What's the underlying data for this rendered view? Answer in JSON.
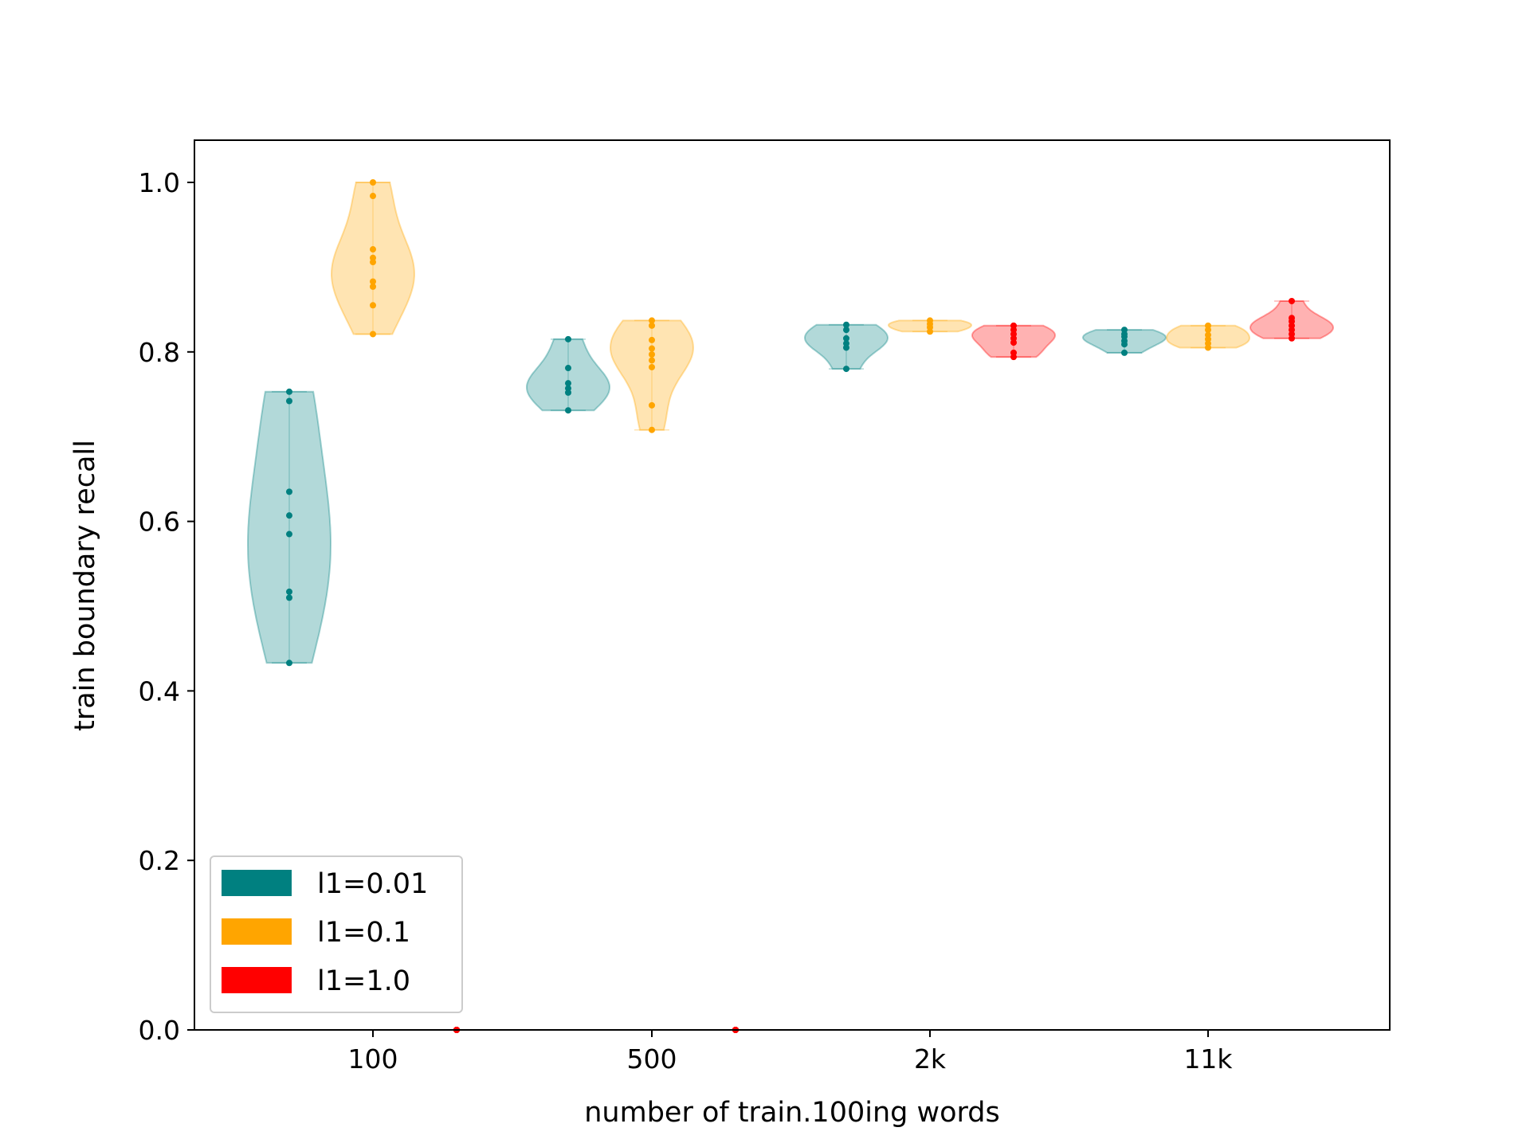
{
  "chart_data": {
    "type": "violin",
    "title": "",
    "xlabel": "number of train.100ing words",
    "ylabel": "train boundary recall",
    "categories": [
      "100",
      "500",
      "2k",
      "11k"
    ],
    "ylim": [
      0,
      1.05
    ],
    "yticks": [
      "0.0",
      "0.2",
      "0.4",
      "0.6",
      "0.8",
      "1.0"
    ],
    "grid": false,
    "legend_position": "lower-left",
    "series": [
      {
        "name": "l1=0.01",
        "color": "#008080",
        "groups": [
          {
            "category": "100",
            "points": [
              0.433,
              0.51,
              0.517,
              0.585,
              0.607,
              0.635,
              0.742,
              0.753
            ]
          },
          {
            "category": "500",
            "points": [
              0.731,
              0.752,
              0.757,
              0.763,
              0.781,
              0.815
            ]
          },
          {
            "category": "2k",
            "points": [
              0.78,
              0.805,
              0.81,
              0.816,
              0.826,
              0.832
            ]
          },
          {
            "category": "11k",
            "points": [
              0.799,
              0.809,
              0.813,
              0.818,
              0.821,
              0.826
            ]
          }
        ]
      },
      {
        "name": "l1=0.1",
        "color": "#FFA500",
        "groups": [
          {
            "category": "100",
            "points": [
              0.821,
              0.855,
              0.877,
              0.883,
              0.906,
              0.911,
              0.921,
              0.984,
              1.0
            ]
          },
          {
            "category": "500",
            "points": [
              0.708,
              0.737,
              0.782,
              0.79,
              0.797,
              0.804,
              0.814,
              0.831,
              0.837
            ]
          },
          {
            "category": "2k",
            "points": [
              0.824,
              0.829,
              0.833,
              0.837
            ]
          },
          {
            "category": "11k",
            "points": [
              0.805,
              0.81,
              0.815,
              0.82,
              0.826,
              0.831
            ]
          }
        ]
      },
      {
        "name": "l1=1.0",
        "color": "#FF0000",
        "groups": [
          {
            "category": "100",
            "points": [
              0.0,
              0.0,
              0.0,
              0.0,
              0.0
            ]
          },
          {
            "category": "500",
            "points": [
              0.0,
              0.0,
              0.0,
              0.0,
              0.0
            ]
          },
          {
            "category": "2k",
            "points": [
              0.794,
              0.799,
              0.811,
              0.816,
              0.821,
              0.826,
              0.831
            ]
          },
          {
            "category": "11k",
            "points": [
              0.816,
              0.821,
              0.826,
              0.831,
              0.836,
              0.84,
              0.86
            ]
          }
        ]
      }
    ]
  }
}
